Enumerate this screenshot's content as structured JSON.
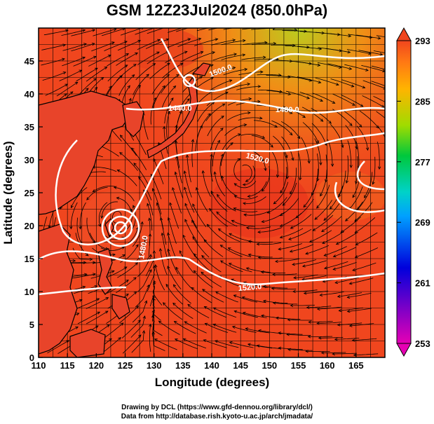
{
  "title": "GSM 12Z23Jul2024 (850.0hPa)",
  "axes": {
    "xlabel": "Longitude (degrees)",
    "ylabel": "Latitude  (degrees)",
    "x_ticks": [
      "110",
      "115",
      "120",
      "125",
      "130",
      "135",
      "140",
      "145",
      "150",
      "155",
      "160",
      "165"
    ],
    "y_ticks": [
      "0",
      "5",
      "10",
      "15",
      "20",
      "25",
      "30",
      "35",
      "40",
      "45"
    ],
    "x_range": [
      110,
      170
    ],
    "y_range": [
      0,
      50
    ]
  },
  "colorbar": {
    "labels": [
      "293",
      "285",
      "277",
      "269",
      "261",
      "253"
    ],
    "range": [
      253,
      293
    ]
  },
  "contours": [
    {
      "label": "1440.0"
    },
    {
      "label": "1480.0"
    },
    {
      "label": "1500.0"
    },
    {
      "label": "1520.0"
    },
    {
      "label": "1520.0"
    },
    {
      "label": "1480.0"
    }
  ],
  "credits": {
    "line1": "Drawing by DCL (https://www.gfd-dennou.org/library/dcl/)",
    "line2": "Data from http://database.rish.kyoto-u.ac.jp/arch/jmadata/"
  },
  "colors": {
    "field_main": "#f0461e",
    "field_warm": "#e8321a",
    "field_north": "#f08c14",
    "contour": "#ffffff",
    "land": "#000000"
  }
}
